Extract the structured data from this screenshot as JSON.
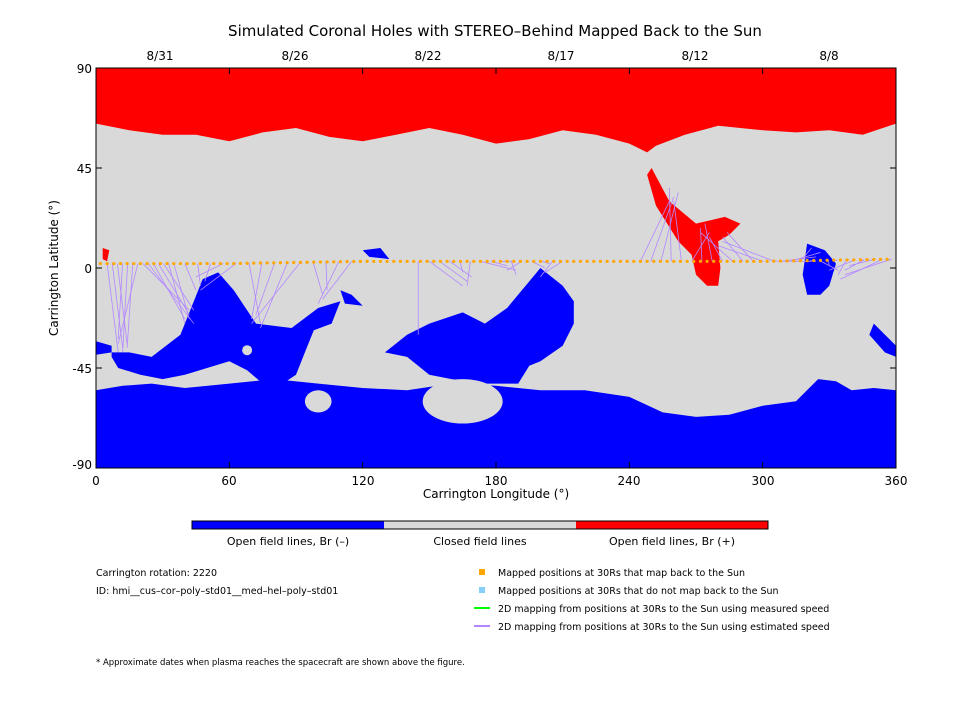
{
  "title": "Simulated Coronal Holes with STEREO–Behind Mapped Back to the Sun",
  "top_dates": [
    "8/31",
    "8/26",
    "8/22",
    "8/17",
    "8/12",
    "8/8"
  ],
  "x_ticks": [
    "0",
    "60",
    "120",
    "180",
    "240",
    "300",
    "360"
  ],
  "y_ticks": [
    "90",
    "45",
    "0",
    "-45",
    "-90"
  ],
  "x_label": "Carrington Longitude (°)",
  "y_label": "Carrington Latitude (°)",
  "colorbar": {
    "labels": [
      "Open field lines, Br (–)",
      "Closed field lines",
      "Open field lines, Br (+)"
    ],
    "colors": [
      "#0000ff",
      "#d9d9d9",
      "#ff0000"
    ]
  },
  "info": {
    "rotation": "Carrington rotation: 2220",
    "id": "ID: hmi__cus–cor–poly–std01__med–hel–poly–std01"
  },
  "legend": [
    {
      "label": "Mapped positions at 30Rs that map back to the Sun",
      "color": "#ffa500",
      "marker": "square"
    },
    {
      "label": "Mapped positions at 30Rs that do not map back to the Sun",
      "color": "#87cefa",
      "marker": "square"
    },
    {
      "label": "2D mapping from positions at 30Rs to the Sun using measured speed",
      "color": "#00ff00",
      "marker": "line"
    },
    {
      "label": "2D mapping from positions at 30Rs to the Sun using estimated speed",
      "color": "#b388ff",
      "marker": "line"
    }
  ],
  "footnote": "* Approximate dates when plasma reaches the spacecraft are shown above the figure.",
  "map_data": {
    "x_range": [
      0,
      360
    ],
    "y_range": [
      -90,
      90
    ],
    "colors": {
      "negative": "#0000ff",
      "closed": "#d9d9d9",
      "positive": "#ff0000",
      "mapped": "#ffa500",
      "mapping_line": "#b388ff"
    },
    "trajectory": [
      [
        0,
        2
      ],
      [
        60,
        2
      ],
      [
        120,
        3
      ],
      [
        180,
        3
      ],
      [
        240,
        3
      ],
      [
        300,
        3
      ],
      [
        360,
        4
      ]
    ],
    "north_boundary": [
      [
        0,
        65
      ],
      [
        15,
        62
      ],
      [
        30,
        60
      ],
      [
        45,
        60
      ],
      [
        60,
        57
      ],
      [
        75,
        61
      ],
      [
        90,
        63
      ],
      [
        105,
        59
      ],
      [
        120,
        57
      ],
      [
        135,
        60
      ],
      [
        150,
        63
      ],
      [
        165,
        60
      ],
      [
        180,
        56
      ],
      [
        195,
        58
      ],
      [
        210,
        62
      ],
      [
        225,
        60
      ],
      [
        240,
        56
      ],
      [
        248,
        52
      ],
      [
        252,
        55
      ],
      [
        265,
        60
      ],
      [
        280,
        64
      ],
      [
        300,
        62
      ],
      [
        315,
        61
      ],
      [
        330,
        62
      ],
      [
        345,
        60
      ],
      [
        360,
        65
      ]
    ],
    "south_boundary": [
      [
        0,
        -55
      ],
      [
        12,
        -53
      ],
      [
        25,
        -52
      ],
      [
        40,
        -54
      ],
      [
        60,
        -52
      ],
      [
        80,
        -50
      ],
      [
        100,
        -52
      ],
      [
        120,
        -54
      ],
      [
        140,
        -55
      ],
      [
        160,
        -52
      ],
      [
        180,
        -53
      ],
      [
        200,
        -55
      ],
      [
        220,
        -55
      ],
      [
        240,
        -58
      ],
      [
        255,
        -65
      ],
      [
        270,
        -67
      ],
      [
        285,
        -66
      ],
      [
        300,
        -62
      ],
      [
        315,
        -60
      ],
      [
        325,
        -50
      ],
      [
        333,
        -51
      ],
      [
        340,
        -55
      ],
      [
        350,
        -54
      ],
      [
        360,
        -55
      ]
    ],
    "positive_hole": [
      [
        250,
        45
      ],
      [
        258,
        30
      ],
      [
        270,
        20
      ],
      [
        283,
        23
      ],
      [
        290,
        20
      ],
      [
        285,
        15
      ],
      [
        280,
        12
      ],
      [
        281,
        0
      ],
      [
        280,
        -8
      ],
      [
        275,
        -8
      ],
      [
        270,
        -3
      ],
      [
        268,
        6
      ],
      [
        262,
        12
      ],
      [
        252,
        28
      ],
      [
        248,
        42
      ]
    ],
    "small_positive": [
      [
        3,
        9
      ],
      [
        6,
        8
      ],
      [
        5,
        3
      ],
      [
        3,
        4
      ]
    ],
    "negative_holes": [
      [
        [
          7,
          -38
        ],
        [
          15,
          -38
        ],
        [
          25,
          -40
        ],
        [
          38,
          -30
        ],
        [
          48,
          -5
        ],
        [
          55,
          -2
        ],
        [
          62,
          -10
        ],
        [
          72,
          -25
        ],
        [
          88,
          -27
        ],
        [
          100,
          -18
        ],
        [
          110,
          -15
        ],
        [
          106,
          -25
        ],
        [
          98,
          -28
        ],
        [
          94,
          -38
        ],
        [
          90,
          -48
        ],
        [
          84,
          -52
        ],
        [
          75,
          -52
        ],
        [
          68,
          -46
        ],
        [
          60,
          -42
        ],
        [
          50,
          -45
        ],
        [
          40,
          -48
        ],
        [
          30,
          -50
        ],
        [
          20,
          -48
        ],
        [
          10,
          -45
        ],
        [
          7,
          -40
        ]
      ],
      [
        [
          110,
          -10
        ],
        [
          115,
          -12
        ],
        [
          120,
          -17
        ],
        [
          112,
          -16
        ]
      ],
      [
        [
          150,
          -25
        ],
        [
          165,
          -20
        ],
        [
          175,
          -25
        ],
        [
          185,
          -18
        ],
        [
          200,
          0
        ],
        [
          210,
          -8
        ],
        [
          215,
          -15
        ],
        [
          215,
          -25
        ],
        [
          210,
          -35
        ],
        [
          200,
          -42
        ],
        [
          195,
          -44
        ],
        [
          190,
          -52
        ],
        [
          175,
          -52
        ],
        [
          160,
          -50
        ],
        [
          150,
          -48
        ],
        [
          140,
          -40
        ],
        [
          130,
          -38
        ],
        [
          140,
          -30
        ]
      ],
      [
        [
          120,
          8
        ],
        [
          128,
          9
        ],
        [
          132,
          4
        ],
        [
          123,
          5
        ]
      ],
      [
        [
          320,
          11
        ],
        [
          328,
          8
        ],
        [
          333,
          2
        ],
        [
          330,
          -8
        ],
        [
          326,
          -12
        ],
        [
          320,
          -12
        ],
        [
          318,
          -3
        ]
      ],
      [
        [
          350,
          -25
        ],
        [
          360,
          -35
        ],
        [
          360,
          -40
        ],
        [
          355,
          -38
        ],
        [
          348,
          -30
        ]
      ],
      [
        [
          0,
          -33
        ],
        [
          7,
          -35
        ],
        [
          7,
          -38
        ],
        [
          0,
          -39
        ]
      ]
    ]
  }
}
